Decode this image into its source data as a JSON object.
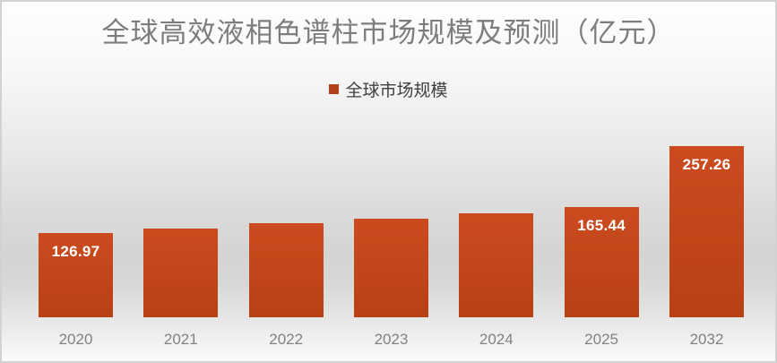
{
  "title": "全球高效液相色谱柱市场规模及预测（亿元）",
  "legend": {
    "label": "全球市场规模",
    "swatch_color": "#b3421a"
  },
  "chart_data": {
    "type": "bar",
    "title": "全球高效液相色谱柱市场规模及预测（亿元）",
    "categories": [
      "2020",
      "2021",
      "2022",
      "2023",
      "2024",
      "2025",
      "2032"
    ],
    "series": [
      {
        "name": "全球市场规模",
        "values": [
          126.97,
          133.8,
          141.0,
          148.7,
          156.8,
          165.44,
          257.26
        ]
      }
    ],
    "data_labels": [
      "126.97",
      "",
      "",
      "",
      "",
      "165.44",
      "257.26"
    ],
    "xlabel": "",
    "ylabel": "",
    "ylim": [
      0,
      270
    ],
    "grid": false,
    "legend_position": "top-center",
    "colors": {
      "bar_top": "#cb4b1f",
      "bar_bottom": "#b84113",
      "data_label": "#ffffff",
      "title": "#7d7d7d",
      "axis_label": "#828282"
    }
  }
}
